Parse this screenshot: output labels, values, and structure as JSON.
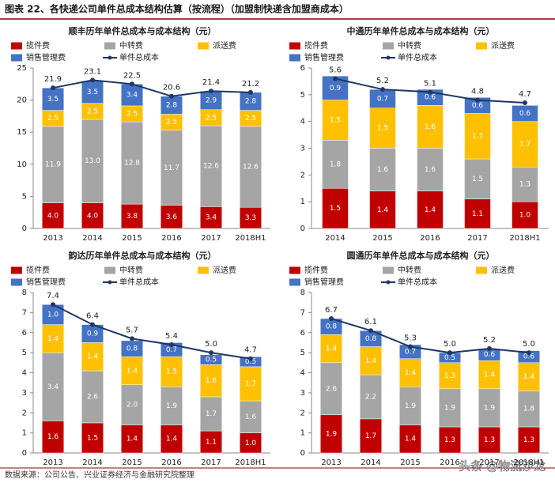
{
  "title": "图表 22、各快递公司单件总成本结构估算（按流程）（加盟制快递含加盟商成本）",
  "source": "数据来源：公司公告、兴业证券经济与金融研究院整理",
  "watermark": "头条 @物流沙龙",
  "chart_data": [
    {
      "type": "bar",
      "title": "顺丰历年单件总成本与成本结构（元）",
      "categories": [
        "2013",
        "2014",
        "2015",
        "2016",
        "2017",
        "2018H1"
      ],
      "ylim": [
        0,
        25
      ],
      "yticks": [
        0,
        5,
        10,
        15,
        20,
        25
      ],
      "series": [
        {
          "name": "揽件费",
          "color": "#C00000",
          "values": [
            4.0,
            4.0,
            3.8,
            3.6,
            3.4,
            3.3
          ],
          "value_labels": [
            "4.0",
            "4.0",
            "3.8",
            "3.6",
            "3.4",
            "3.3"
          ]
        },
        {
          "name": "中转费",
          "color": "#A5A5A5",
          "values": [
            11.9,
            13.0,
            12.8,
            11.7,
            12.6,
            12.6
          ],
          "value_labels": [
            "11.9",
            "13.0",
            "12.8",
            "11.7",
            "12.6",
            "12.6"
          ]
        },
        {
          "name": "派送费",
          "color": "#FFC000",
          "values": [
            2.5,
            2.5,
            2.5,
            2.5,
            2.5,
            2.5
          ],
          "value_labels": [
            "2.5",
            "2.5",
            "2.5",
            "2.5",
            "2.5",
            "2.5"
          ]
        },
        {
          "name": "销售管理费",
          "color": "#4472C4",
          "values": [
            3.5,
            3.5,
            3.4,
            2.8,
            2.9,
            2.8
          ],
          "value_labels": [
            "3.5",
            "3.5",
            "3.4",
            "2.8",
            "2.9",
            "2.8"
          ]
        },
        {
          "name": "单件总成本",
          "type": "line",
          "color": "#1F3864",
          "values": [
            21.9,
            23.1,
            22.5,
            20.6,
            21.4,
            21.2
          ],
          "value_labels": [
            "21.9",
            "23.1",
            "22.5",
            "20.6",
            "21.4",
            "21.2"
          ]
        }
      ]
    },
    {
      "type": "bar",
      "title": "中通历年单件总成本与成本结构（元）",
      "categories": [
        "2014",
        "2015",
        "2016",
        "2017",
        "2018H1"
      ],
      "ylim": [
        0,
        6
      ],
      "yticks": [
        0,
        1,
        2,
        3,
        4,
        5,
        6
      ],
      "series": [
        {
          "name": "揽件费",
          "color": "#C00000",
          "values": [
            1.5,
            1.4,
            1.4,
            1.1,
            1.0
          ],
          "value_labels": [
            "1.5",
            "1.4",
            "1.4",
            "1.1",
            "1.0"
          ]
        },
        {
          "name": "中转费",
          "color": "#A5A5A5",
          "values": [
            1.8,
            1.6,
            1.6,
            1.5,
            1.3
          ],
          "value_labels": [
            "1.8",
            "1.6",
            "1.6",
            "1.5",
            "1.3"
          ]
        },
        {
          "name": "派送费",
          "color": "#FFC000",
          "values": [
            1.5,
            1.5,
            1.6,
            1.7,
            1.7
          ],
          "value_labels": [
            "1.5",
            "1.5",
            "1.6",
            "1.7",
            "1.7"
          ]
        },
        {
          "name": "销售管理费",
          "color": "#4472C4",
          "values": [
            0.9,
            0.7,
            0.6,
            0.6,
            0.6
          ],
          "value_labels": [
            "0.9",
            "0.7",
            "0.6",
            "0.6",
            "0.6"
          ]
        },
        {
          "name": "单件总成本",
          "type": "line",
          "color": "#1F3864",
          "values": [
            5.6,
            5.2,
            5.1,
            4.8,
            4.7
          ],
          "value_labels": [
            "5.6",
            "5.2",
            "5.1",
            "4.8",
            "4.7"
          ]
        }
      ]
    },
    {
      "type": "bar",
      "title": "韵达历年单件总成本与成本结构（元）",
      "categories": [
        "2013",
        "2014",
        "2015",
        "2016",
        "2017",
        "2018H1"
      ],
      "ylim": [
        0,
        8
      ],
      "yticks": [
        0,
        1,
        2,
        3,
        4,
        5,
        6,
        7,
        8
      ],
      "series": [
        {
          "name": "揽件费",
          "color": "#C00000",
          "values": [
            1.6,
            1.5,
            1.4,
            1.4,
            1.1,
            1.0
          ],
          "value_labels": [
            "1.6",
            "1.5",
            "1.4",
            "1.4",
            "1.1",
            "1.0"
          ]
        },
        {
          "name": "中转费",
          "color": "#A5A5A5",
          "values": [
            3.4,
            2.6,
            2.0,
            1.9,
            1.7,
            1.6
          ],
          "value_labels": [
            "3.4",
            "2.6",
            "2.0",
            "1.9",
            "1.7",
            "1.6"
          ]
        },
        {
          "name": "派送费",
          "color": "#FFC000",
          "values": [
            1.4,
            1.4,
            1.4,
            1.5,
            1.6,
            1.7
          ],
          "value_labels": [
            "1.4",
            "1.4",
            "1.4",
            "1.5",
            "1.6",
            "1.7"
          ]
        },
        {
          "name": "销售管理费",
          "color": "#4472C4",
          "values": [
            1.0,
            0.9,
            0.8,
            0.7,
            0.5,
            0.5
          ],
          "value_labels": [
            "1.0",
            "0.9",
            "0.8",
            "0.7",
            "0.5",
            "0.5"
          ]
        },
        {
          "name": "单件总成本",
          "type": "line",
          "color": "#1F3864",
          "values": [
            7.4,
            6.4,
            5.7,
            5.4,
            5.0,
            4.7
          ],
          "value_labels": [
            "7.4",
            "6.4",
            "5.7",
            "5.4",
            "5.0",
            "4.7"
          ]
        }
      ]
    },
    {
      "type": "bar",
      "title": "圆通历年单件总成本与成本结构（元）",
      "categories": [
        "2013",
        "2014",
        "2015",
        "2016",
        "2017",
        "2018H1"
      ],
      "ylim": [
        0,
        8
      ],
      "yticks": [
        0,
        1,
        2,
        3,
        4,
        5,
        6,
        7,
        8
      ],
      "series": [
        {
          "name": "揽件费",
          "color": "#C00000",
          "values": [
            1.9,
            1.7,
            1.4,
            1.3,
            1.3,
            1.3
          ],
          "value_labels": [
            "1.9",
            "1.7",
            "1.4",
            "1.3",
            "1.3",
            "1.3"
          ]
        },
        {
          "name": "中转费",
          "color": "#A5A5A5",
          "values": [
            2.6,
            2.2,
            1.9,
            1.9,
            1.9,
            1.8
          ],
          "value_labels": [
            "2.6",
            "2.2",
            "1.9",
            "1.9",
            "1.9",
            "1.8"
          ]
        },
        {
          "name": "派送费",
          "color": "#FFC000",
          "values": [
            1.4,
            1.4,
            1.4,
            1.3,
            1.4,
            1.4
          ],
          "value_labels": [
            "1.4",
            "1.4",
            "1.4",
            "1.3",
            "1.4",
            "1.4"
          ]
        },
        {
          "name": "销售管理费",
          "color": "#4472C4",
          "values": [
            0.8,
            0.8,
            0.7,
            0.5,
            0.6,
            0.6
          ],
          "value_labels": [
            "0.8",
            "0.8",
            "0.7",
            "0.5",
            "0.6",
            "0.6"
          ]
        },
        {
          "name": "单件总成本",
          "type": "line",
          "color": "#1F3864",
          "values": [
            6.7,
            6.1,
            5.3,
            5.0,
            5.2,
            5.0
          ],
          "value_labels": [
            "6.7",
            "6.1",
            "5.3",
            "5.0",
            "5.2",
            "5.0"
          ]
        }
      ]
    }
  ]
}
